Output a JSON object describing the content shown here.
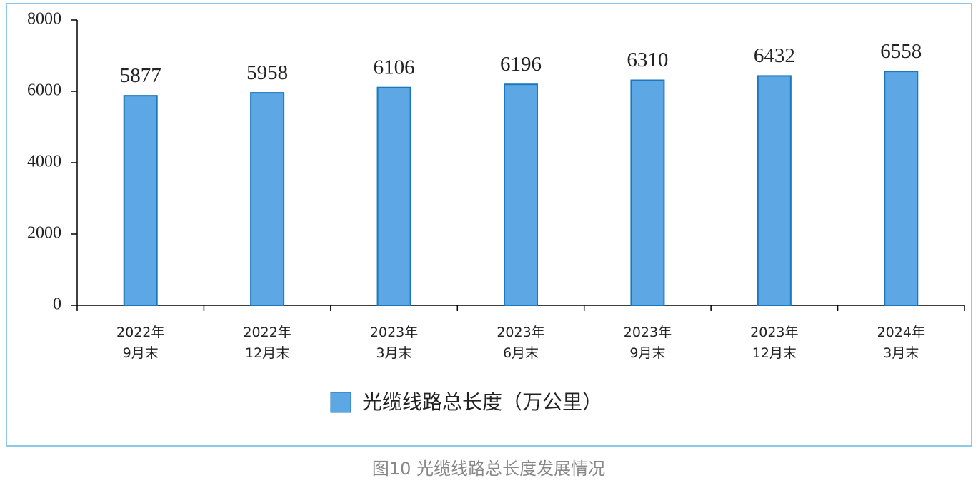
{
  "chart_data": {
    "type": "bar",
    "categories": [
      "2022年\n9月末",
      "2022年\n12月末",
      "2023年\n3月末",
      "2023年\n6月末",
      "2023年\n9月末",
      "2023年\n12月末",
      "2024年\n3月末"
    ],
    "series": [
      {
        "name": "光缆线路总长度（万公里）",
        "color": "#5da7e4",
        "values": [
          5877,
          5958,
          6106,
          6196,
          6310,
          6432,
          6558
        ]
      }
    ],
    "ylim": [
      0,
      8000
    ],
    "yticks": [
      0,
      2000,
      4000,
      6000,
      8000
    ],
    "grid": false,
    "legend": "bottom",
    "caption": "图10 光缆线路总长度发展情况"
  }
}
